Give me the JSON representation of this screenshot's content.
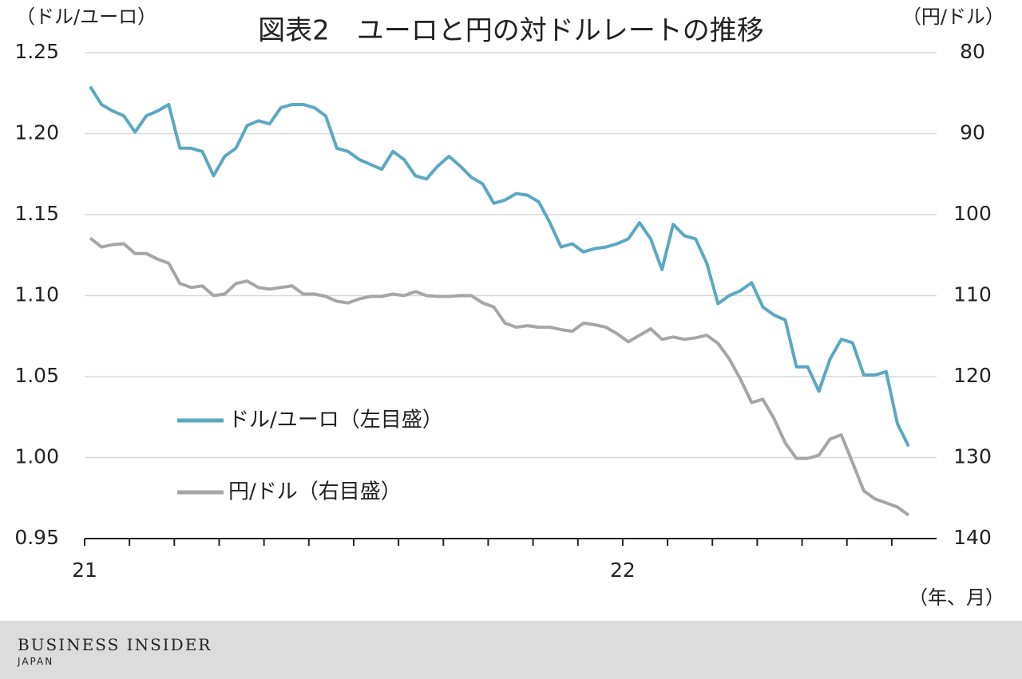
{
  "chart_data": {
    "type": "line",
    "title": "図表2　ユーロと円の対ドルレートの推移",
    "y_label": "（ドル/ユーロ）",
    "y2_label": "（円/ドル）",
    "x_label": "（年、月）",
    "categories": [
      "21",
      null,
      null,
      null,
      null,
      null,
      null,
      null,
      null,
      null,
      null,
      null,
      null,
      null,
      null,
      null,
      null,
      null,
      null,
      null,
      null,
      null,
      null,
      null,
      null,
      null,
      null,
      null,
      null,
      null,
      null,
      null,
      null,
      null,
      null,
      null,
      null,
      null,
      null,
      null,
      null,
      null,
      null,
      null,
      null,
      null,
      null,
      null,
      "22",
      null,
      null,
      null,
      null,
      null,
      null,
      null,
      null,
      null,
      null,
      null,
      null,
      null,
      null,
      null,
      null,
      null,
      null,
      null,
      null,
      null,
      null,
      null,
      null,
      null,
      null,
      null
    ],
    "series": [
      {
        "name": "ドル/ユーロ（左目盛）",
        "color": "#5ba8c3",
        "axis": "y",
        "values": [
          1.229,
          1.218,
          1.214,
          1.211,
          1.201,
          1.211,
          1.214,
          1.218,
          1.191,
          1.191,
          1.189,
          1.174,
          1.186,
          1.191,
          1.205,
          1.208,
          1.206,
          1.216,
          1.218,
          1.218,
          1.216,
          1.211,
          1.191,
          1.189,
          1.184,
          1.181,
          1.178,
          1.189,
          1.184,
          1.174,
          1.172,
          1.18,
          1.186,
          1.18,
          1.173,
          1.169,
          1.157,
          1.159,
          1.163,
          1.162,
          1.158,
          1.145,
          1.13,
          1.132,
          1.127,
          1.129,
          1.13,
          1.132,
          1.135,
          1.145,
          1.135,
          1.116,
          1.144,
          1.137,
          1.135,
          1.12,
          1.095,
          1.1,
          1.103,
          1.108,
          1.093,
          1.088,
          1.085,
          1.056,
          1.056,
          1.041,
          1.061,
          1.073,
          1.071,
          1.051,
          1.051,
          1.053,
          1.021,
          1.007,
          null,
          null
        ]
      },
      {
        "name": "円/ドル（右目盛）",
        "color": "#a6a6a6",
        "axis": "y2",
        "values": [
          102.9,
          104.0,
          103.7,
          103.6,
          104.8,
          104.8,
          105.5,
          106.0,
          108.5,
          109.0,
          108.8,
          110.0,
          109.8,
          108.5,
          108.2,
          109.0,
          109.2,
          109.0,
          108.8,
          109.8,
          109.8,
          110.1,
          110.7,
          110.9,
          110.4,
          110.1,
          110.1,
          109.8,
          110.0,
          109.5,
          110.0,
          110.1,
          110.1,
          110.0,
          110.0,
          110.9,
          111.4,
          113.4,
          113.9,
          113.7,
          113.9,
          113.9,
          114.2,
          114.4,
          113.4,
          113.6,
          113.9,
          114.7,
          115.7,
          114.9,
          114.1,
          115.4,
          115.1,
          115.4,
          115.2,
          114.9,
          115.9,
          117.8,
          120.3,
          123.2,
          122.8,
          125.2,
          128.2,
          130.1,
          130.1,
          129.7,
          127.7,
          127.2,
          130.6,
          134.1,
          135.1,
          135.6,
          136.1,
          137.1,
          null,
          null
        ]
      }
    ],
    "ylim": [
      0.95,
      1.25
    ],
    "yticks": [
      0.95,
      {
        "value": 1,
        "label": "1.00"
      },
      1.05,
      {
        "value": 1.1,
        "label": "1.10"
      },
      1.15,
      {
        "value": 1.2,
        "label": "1.20"
      },
      1.25
    ],
    "y2lim": [
      140,
      80
    ],
    "y2ticks": [
      140,
      130,
      120,
      110,
      100,
      90,
      80
    ],
    "grid": true,
    "legend": "center-left"
  },
  "footer": {
    "brand": "BUSINESS INSIDER",
    "sub": "JAPAN"
  }
}
